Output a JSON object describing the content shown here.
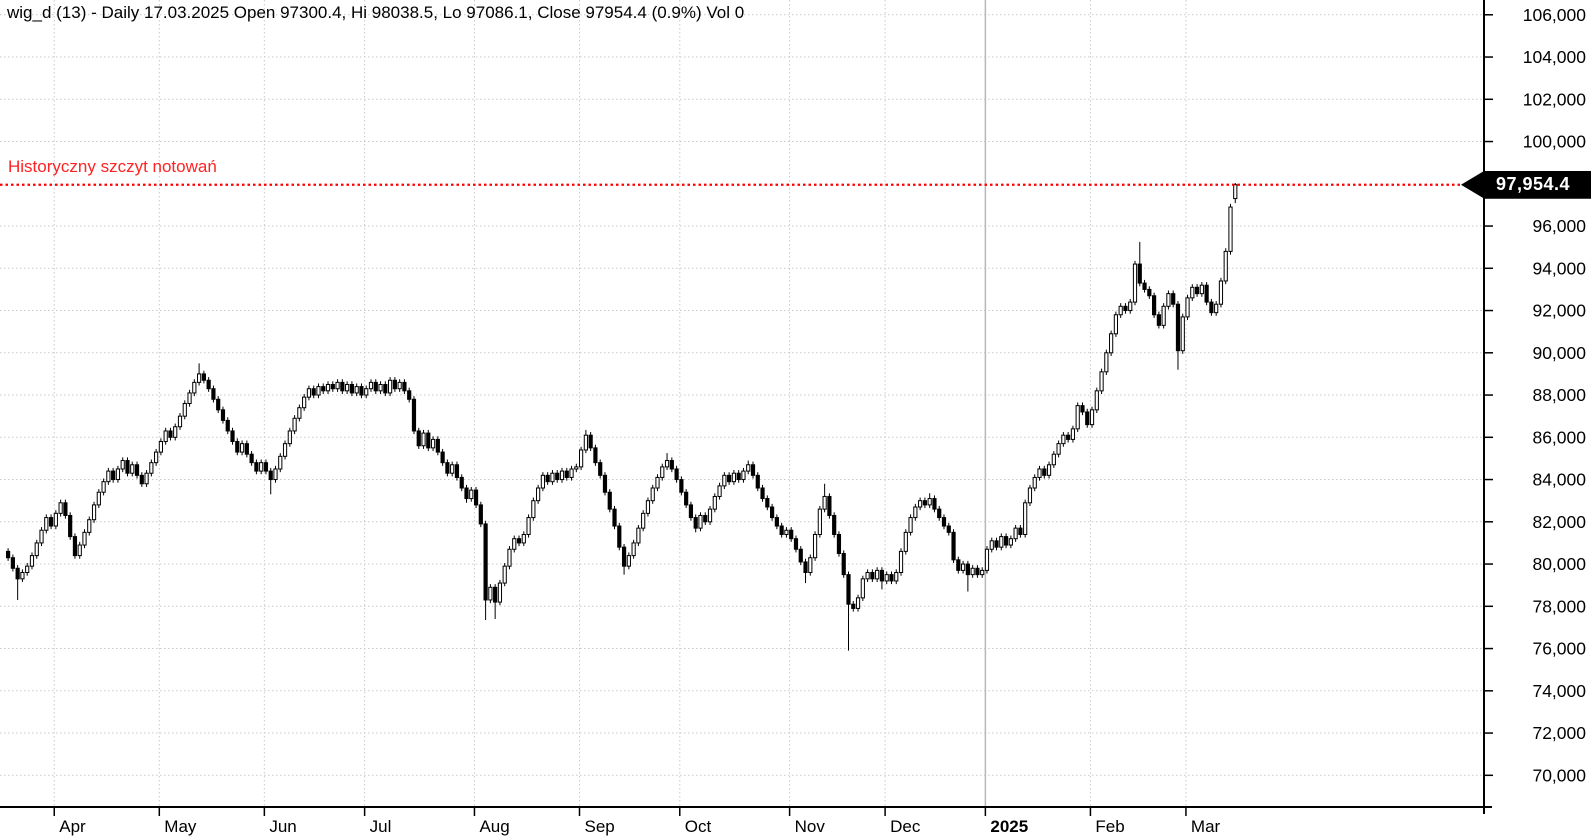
{
  "title": "wig_d (13) - Daily 17.03.2025 Open 97300.4, Hi 98038.5, Lo 97086.1, Close 97954.4 (0.9%) Vol 0",
  "annotation": {
    "label": "Historyczny szczyt notowań",
    "value": 97954.4,
    "line_color": "#ff0000",
    "text_color": "#ff2222"
  },
  "price_tag": {
    "label": "97,954.4",
    "value": 97954.4,
    "bg": "#000000",
    "fg": "#ffffff"
  },
  "axis": {
    "line_color": "#000000",
    "grid_color": "#c9c9c9",
    "year_line_color": "#b8b8b8",
    "label_color": "#000000"
  },
  "chart_data": {
    "type": "candlestick",
    "symbol": "wig_d",
    "interval": "Daily",
    "last_quote": {
      "date": "17.03.2025",
      "open": 97300.4,
      "high": 98038.5,
      "low": 97086.1,
      "close": 97954.4,
      "change_pct": 0.9,
      "volume": 0
    },
    "ylim": [
      68500,
      106700
    ],
    "y_ticks": [
      {
        "v": 106000,
        "label": "106,000"
      },
      {
        "v": 104000,
        "label": "104,000"
      },
      {
        "v": 102000,
        "label": "102,000"
      },
      {
        "v": 100000,
        "label": "100,000"
      },
      {
        "v": 96000,
        "label": "96,000"
      },
      {
        "v": 94000,
        "label": "94,000"
      },
      {
        "v": 92000,
        "label": "92,000"
      },
      {
        "v": 90000,
        "label": "90,000"
      },
      {
        "v": 88000,
        "label": "88,000"
      },
      {
        "v": 86000,
        "label": "86,000"
      },
      {
        "v": 84000,
        "label": "84,000"
      },
      {
        "v": 82000,
        "label": "82,000"
      },
      {
        "v": 80000,
        "label": "80,000"
      },
      {
        "v": 78000,
        "label": "78,000"
      },
      {
        "v": 76000,
        "label": "76,000"
      },
      {
        "v": 74000,
        "label": "74,000"
      },
      {
        "v": 72000,
        "label": "72,000"
      },
      {
        "v": 70000,
        "label": "70,000"
      }
    ],
    "x_ticks": [
      {
        "i": 10,
        "label": "Apr"
      },
      {
        "i": 32,
        "label": "May"
      },
      {
        "i": 54,
        "label": "Jun"
      },
      {
        "i": 75,
        "label": "Jul"
      },
      {
        "i": 98,
        "label": "Aug"
      },
      {
        "i": 120,
        "label": "Sep"
      },
      {
        "i": 141,
        "label": "Oct"
      },
      {
        "i": 164,
        "label": "Nov"
      },
      {
        "i": 184,
        "label": "Dec"
      },
      {
        "i": 205,
        "label": "2025",
        "bold": true,
        "year_line": true
      },
      {
        "i": 227,
        "label": "Feb"
      },
      {
        "i": 247,
        "label": "Mar"
      }
    ],
    "first_open": 80600,
    "default_wick": 150,
    "closes": [
      80300,
      79800,
      79300,
      79600,
      79900,
      80400,
      81000,
      81600,
      82200,
      81800,
      82400,
      82900,
      82300,
      81300,
      80400,
      80900,
      81500,
      82100,
      82800,
      83400,
      83900,
      84400,
      84000,
      84500,
      84900,
      84300,
      84700,
      84200,
      83800,
      84300,
      84800,
      85300,
      85800,
      86300,
      86000,
      86500,
      87000,
      87600,
      88100,
      88600,
      89000,
      88700,
      88300,
      87800,
      87300,
      86800,
      86300,
      85800,
      85300,
      85700,
      85200,
      84800,
      84400,
      84800,
      84400,
      84000,
      84500,
      85100,
      85700,
      86300,
      86900,
      87400,
      87900,
      88300,
      88000,
      88400,
      88200,
      88500,
      88300,
      88600,
      88200,
      88500,
      88100,
      88400,
      88000,
      88300,
      88600,
      88200,
      88500,
      88100,
      88700,
      88300,
      88600,
      88200,
      87800,
      86300,
      85600,
      86200,
      85500,
      85900,
      85300,
      84800,
      84300,
      84700,
      84100,
      83600,
      83100,
      83500,
      82800,
      81900,
      78300,
      78900,
      78200,
      79100,
      79900,
      80700,
      81200,
      81000,
      81400,
      82200,
      83000,
      83600,
      84200,
      83900,
      84300,
      84000,
      84400,
      84100,
      84500,
      84600,
      85400,
      86100,
      85500,
      84800,
      84200,
      83400,
      82600,
      81800,
      80800,
      79900,
      80400,
      81000,
      81700,
      82400,
      83000,
      83600,
      84100,
      84600,
      84900,
      84500,
      84000,
      83400,
      82800,
      82200,
      81700,
      82300,
      82000,
      82600,
      83200,
      83700,
      84200,
      83900,
      84300,
      84000,
      84400,
      84700,
      84200,
      83600,
      83100,
      82700,
      82200,
      81800,
      81400,
      81600,
      81200,
      80700,
      80100,
      79600,
      80300,
      81400,
      82600,
      83200,
      82300,
      81400,
      80500,
      79500,
      78100,
      77900,
      78400,
      79300,
      79600,
      79300,
      79700,
      79200,
      79500,
      79200,
      79600,
      80600,
      81500,
      82200,
      82700,
      83000,
      82800,
      83100,
      82600,
      82200,
      81800,
      81500,
      80200,
      79700,
      80000,
      79500,
      79800,
      79500,
      79700,
      80700,
      81100,
      80800,
      81300,
      80900,
      81200,
      81700,
      81400,
      82900,
      83600,
      84100,
      84500,
      84200,
      84700,
      85200,
      85700,
      86100,
      85900,
      86400,
      87500,
      87200,
      86600,
      87300,
      88200,
      89100,
      90000,
      90900,
      91800,
      92200,
      92000,
      92400,
      94200,
      93300,
      93000,
      92700,
      91800,
      91300,
      92200,
      92800,
      92300,
      90100,
      91700,
      92600,
      93100,
      92800,
      93200,
      92400,
      91900,
      92300,
      93400,
      94800,
      96900,
      97954.4
    ],
    "high_overrides": [
      [
        40,
        89500
      ],
      [
        121,
        86350
      ],
      [
        138,
        85250
      ],
      [
        155,
        84900
      ],
      [
        171,
        83800
      ],
      [
        193,
        83350
      ],
      [
        237,
        95250
      ],
      [
        257,
        98038.5
      ]
    ],
    "low_overrides": [
      [
        2,
        78300
      ],
      [
        55,
        83300
      ],
      [
        96,
        82900
      ],
      [
        100,
        77350
      ],
      [
        102,
        77400
      ],
      [
        129,
        79500
      ],
      [
        144,
        81500
      ],
      [
        167,
        79100
      ],
      [
        176,
        75900
      ],
      [
        183,
        78800
      ],
      [
        201,
        78700
      ],
      [
        245,
        89200
      ],
      [
        257,
        97086.1
      ]
    ],
    "open_overrides": [
      [
        257,
        97300.4
      ]
    ],
    "grid": {
      "h_step": 2000,
      "on": true,
      "style": "dotted"
    }
  }
}
